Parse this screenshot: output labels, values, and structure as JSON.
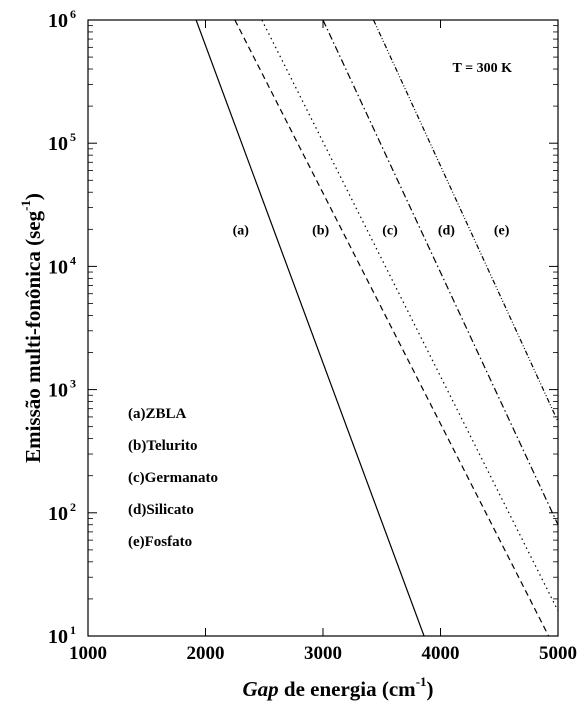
{
  "chart_data": {
    "type": "line",
    "ylabel_main": "Emissão multi-fonônica (seg",
    "ylabel_exp": "-1",
    "ylabel_close": ")",
    "xlabel_italic": "Gap",
    "xlabel_rest": " de energia (cm",
    "xlabel_exp": "-1",
    "xlabel_close": ")",
    "annotation": "T = 300 K",
    "xlim": [
      1000,
      5000
    ],
    "ylim": [
      10,
      1000000
    ],
    "yscale": "log",
    "x_ticks": [
      1000,
      2000,
      3000,
      4000,
      5000
    ],
    "y_ticks": [
      {
        "value": 10,
        "base": "10",
        "exp": "1"
      },
      {
        "value": 100,
        "base": "10",
        "exp": "2"
      },
      {
        "value": 1000,
        "base": "10",
        "exp": "3"
      },
      {
        "value": 10000,
        "base": "10",
        "exp": "4"
      },
      {
        "value": 100000,
        "base": "10",
        "exp": "5"
      },
      {
        "value": 1000000,
        "base": "10",
        "exp": "6"
      }
    ],
    "series": [
      {
        "label": "(a)",
        "legend": "(a)ZBLA",
        "dash": "",
        "x": [
          1920,
          3860
        ],
        "y": [
          1000000,
          10
        ]
      },
      {
        "label": "(b)",
        "legend": "(b)Telurito",
        "dash": "6,4",
        "x": [
          2250,
          4920
        ],
        "y": [
          1000000,
          10
        ]
      },
      {
        "label": "(c)",
        "legend": "(c)Germanato",
        "dash": "1.5,3.5",
        "x": [
          2480,
          5000
        ],
        "y": [
          1000000,
          16
        ]
      },
      {
        "label": "(d)",
        "legend": "(d)Silicato",
        "dash": "7,3,1.5,3",
        "x": [
          3000,
          5000
        ],
        "y": [
          1000000,
          80
        ]
      },
      {
        "label": "(e)",
        "legend": "(e)Fosfato",
        "dash": "5,2,1,2,1,2",
        "x": [
          3430,
          5000
        ],
        "y": [
          1000000,
          550
        ]
      }
    ],
    "series_label_y": 20000,
    "series_label_x": [
      2300,
      2980,
      3570,
      4050,
      4520
    ]
  }
}
